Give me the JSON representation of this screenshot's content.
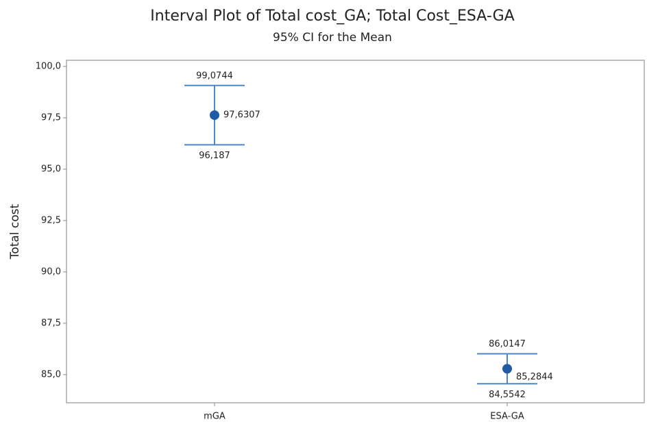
{
  "chart_data": {
    "type": "interval",
    "title": "Interval Plot of Total cost_GA; Total Cost_ESA-GA",
    "subtitle": "95% CI for the Mean",
    "y_label": "Total cost",
    "categories": [
      "mGA",
      "ESA-GA"
    ],
    "values": [
      97.6307,
      85.2844
    ],
    "value_labels": [
      "97,6307",
      "85,2844"
    ],
    "lower": [
      96.187,
      84.5542
    ],
    "lower_labels": [
      "96,187",
      "84,5542"
    ],
    "upper": [
      99.0744,
      86.0147
    ],
    "upper_labels": [
      "99,0744",
      "86,0147"
    ],
    "color": "#1f5ba6",
    "line_color": "#4b86c6",
    "ylim": [
      83.63,
      100.3
    ],
    "yticks": [
      {
        "value": 85,
        "label": "85,0"
      },
      {
        "value": 87.5,
        "label": "87,5"
      },
      {
        "value": 90,
        "label": "90,0"
      },
      {
        "value": 92.5,
        "label": "92,5"
      },
      {
        "value": 95,
        "label": "95,0"
      },
      {
        "value": 97.5,
        "label": "97,5"
      },
      {
        "value": 100,
        "label": "100,0"
      }
    ]
  }
}
